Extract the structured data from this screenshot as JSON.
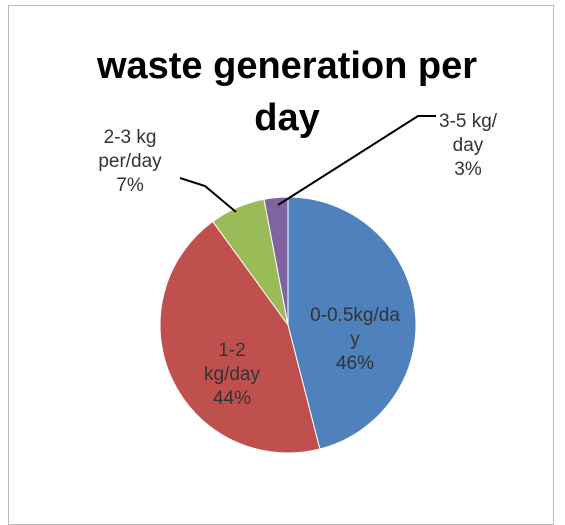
{
  "chart_data": {
    "type": "pie",
    "title": "waste generation per day",
    "categories": [
      "0-0.5kg/day",
      "1-2 kg/day",
      "2-3 kg per/day",
      "3-5 kg/ day"
    ],
    "values": [
      46,
      44,
      7,
      3
    ],
    "value_labels": [
      "46%",
      "44%",
      "7%",
      "3%"
    ],
    "colors": [
      "#4f81bd",
      "#c0504d",
      "#9bbb59",
      "#8064a2"
    ]
  }
}
